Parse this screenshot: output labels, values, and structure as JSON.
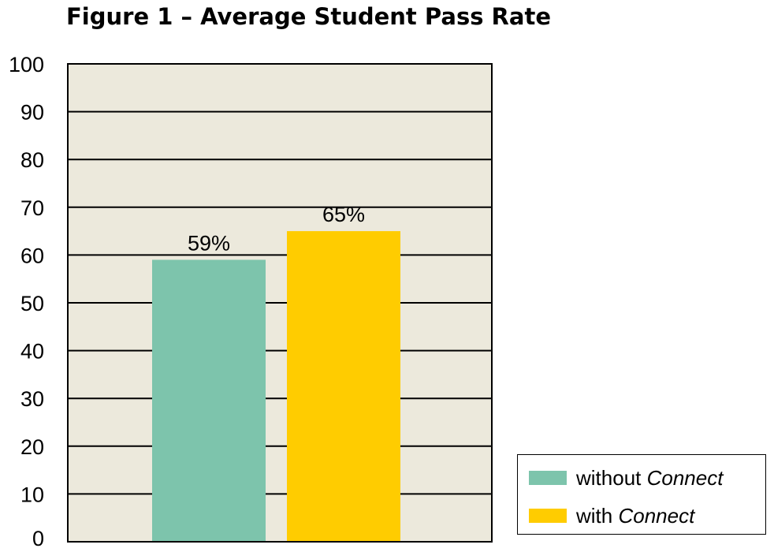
{
  "chart_data": {
    "type": "bar",
    "title": "Figure 1 – Average Student Pass Rate",
    "xlabel": "",
    "ylabel": "",
    "ylim": [
      0,
      100
    ],
    "yticks": [
      "0",
      "10",
      "20",
      "30",
      "40",
      "50",
      "60",
      "70",
      "80",
      "90",
      "100"
    ],
    "grid": true,
    "plot_background": "#ECE9DC",
    "legend_position": "bottom-right",
    "series": [
      {
        "name_prefix": "without ",
        "name_emphasis": "Connect",
        "value": 59,
        "value_label": "59%",
        "color": "#7DC4AC"
      },
      {
        "name_prefix": "with ",
        "name_emphasis": "Connect",
        "value": 65,
        "value_label": "65%",
        "color": "#FFCC00"
      }
    ]
  }
}
